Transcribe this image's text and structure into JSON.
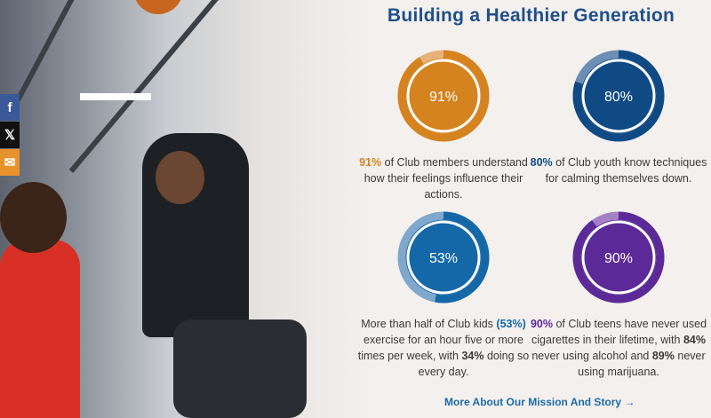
{
  "title": "Building a Healthier Generation",
  "social": [
    {
      "icon": "facebook-icon",
      "glyph": "f",
      "color": "#3b5998"
    },
    {
      "icon": "x-icon",
      "glyph": "𝕏",
      "color": "#111111"
    },
    {
      "icon": "email-icon",
      "glyph": "✉",
      "color": "#e8922c"
    }
  ],
  "stats": [
    {
      "value": 91,
      "label": "91%",
      "color": "#d4831f",
      "light": "#e8b17a",
      "highlight": "91%",
      "text": " of Club members understand how their feelings influence their actions."
    },
    {
      "value": 80,
      "label": "80%",
      "color": "#104a85",
      "light": "#6e8fb5",
      "highlight": "80%",
      "text": " of Club youth know techniques for calming themselves down."
    },
    {
      "value": 53,
      "label": "53%",
      "color": "#1468a8",
      "light": "#7fa8cc",
      "pre": "More than half of Club kids ",
      "highlight": "(53%)",
      "text": " exercise for an hour five or more times per week, with ",
      "bold1": "34%",
      "text2": " doing so every day."
    },
    {
      "value": 90,
      "label": "90%",
      "color": "#5b2a98",
      "light": "#a381c6",
      "highlight": "90%",
      "text": " of Club teens have never used cigarettes in their lifetime, with ",
      "bold1": "84%",
      "text2": " never using alcohol and ",
      "bold2": "89%",
      "text3": " never using marijuana."
    }
  ],
  "link": "More About Our Mission And Story →"
}
